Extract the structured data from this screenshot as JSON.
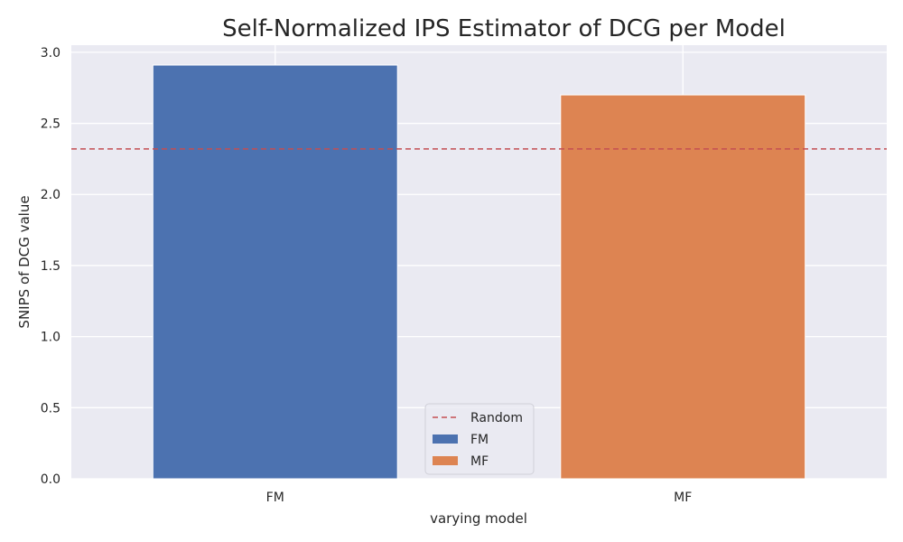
{
  "chart_data": {
    "type": "bar",
    "title": "Self-Normalized IPS Estimator of DCG per Model",
    "xlabel": "varying model",
    "ylabel": "SNIPS of DCG value",
    "categories": [
      "FM",
      "MF"
    ],
    "values": [
      2.91,
      2.7
    ],
    "colors": [
      "#4c72b0",
      "#dd8452"
    ],
    "ylim": [
      0,
      3.05
    ],
    "yticks": [
      "0.0",
      "0.5",
      "1.0",
      "1.5",
      "2.0",
      "2.5",
      "3.0"
    ],
    "reference_line": {
      "name": "Random",
      "value": 2.32,
      "color": "#c44e52",
      "style": "dashed"
    },
    "legend": {
      "placement": "lower-center",
      "entries": [
        {
          "label": "Random",
          "kind": "line",
          "color": "#c44e52"
        },
        {
          "label": "FM",
          "kind": "patch",
          "color": "#4c72b0"
        },
        {
          "label": "MF",
          "kind": "patch",
          "color": "#dd8452"
        }
      ]
    },
    "grid": true,
    "background": "#eaeaf2"
  }
}
